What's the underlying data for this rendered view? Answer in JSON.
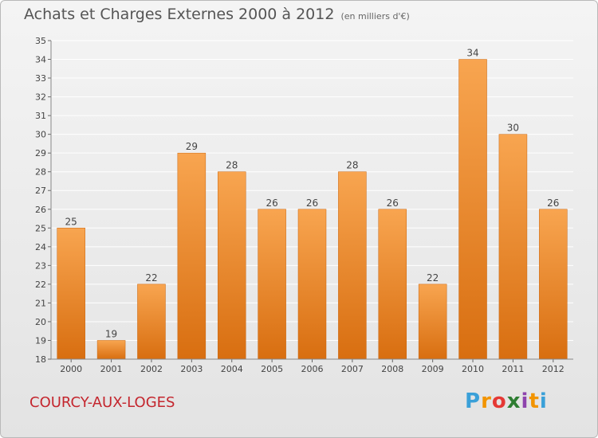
{
  "title": "Achats et Charges Externes 2000 à 2012",
  "unit": "(en milliers d'€)",
  "city": "COURCY-AUX-LOGES",
  "brand": {
    "letters": [
      "P",
      "r",
      "o",
      "x",
      "i",
      "t",
      "i"
    ],
    "colors": [
      "#3aa0d8",
      "#f29400",
      "#e53935",
      "#2e7d32",
      "#8e44ad",
      "#f29400",
      "#3aa0d8"
    ]
  },
  "colors": {
    "bar_top": "#f8a550",
    "bar_bottom": "#d86e10",
    "grid": "#ffffff",
    "axis_text": "#444444",
    "city": "#c4262e"
  },
  "chart_data": {
    "type": "bar",
    "categories": [
      "2000",
      "2001",
      "2002",
      "2003",
      "2004",
      "2005",
      "2006",
      "2007",
      "2008",
      "2009",
      "2010",
      "2011",
      "2012"
    ],
    "values": [
      25,
      19,
      22,
      29,
      28,
      26,
      26,
      28,
      26,
      22,
      34,
      30,
      26
    ],
    "title": "Achats et Charges Externes 2000 à 2012",
    "xlabel": "",
    "ylabel": "",
    "ylim": [
      18,
      35
    ],
    "ytick_step": 1,
    "grid": true,
    "data_labels": true
  }
}
